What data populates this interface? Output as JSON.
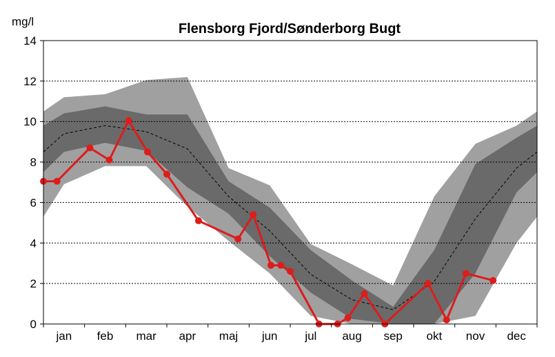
{
  "chart_data": {
    "type": "area",
    "title": "Flensborg Fjord/Sønderborg Bugt",
    "ylabel": "mg/l",
    "xlabel": "",
    "ylim": [
      0,
      14
    ],
    "yticks": [
      0,
      2,
      4,
      6,
      8,
      10,
      12,
      14
    ],
    "grid": true,
    "categories": [
      "jan",
      "feb",
      "mar",
      "apr",
      "maj",
      "jun",
      "jul",
      "aug",
      "sep",
      "okt",
      "nov",
      "dec"
    ],
    "x_range": [
      0,
      12
    ],
    "band_x": [
      0,
      0.5,
      1.5,
      2.5,
      3.5,
      4.5,
      5.5,
      6.5,
      7.5,
      8.5,
      9.5,
      10.5,
      11.5,
      12
    ],
    "outer_band": {
      "upper": [
        10.5,
        11.2,
        11.35,
        12.05,
        12.2,
        7.7,
        6.85,
        3.95,
        2.95,
        1.9,
        6.3,
        8.9,
        9.8,
        10.5
      ],
      "lower": [
        5.3,
        6.9,
        7.8,
        7.8,
        5.8,
        4.1,
        2.5,
        0.4,
        0.0,
        0.0,
        0.0,
        0.4,
        4.0,
        5.3
      ]
    },
    "inner_band": {
      "upper": [
        9.8,
        10.4,
        10.75,
        10.35,
        10.35,
        7.05,
        5.75,
        3.65,
        2.15,
        0.85,
        3.65,
        7.9,
        9.2,
        9.8
      ],
      "lower": [
        7.5,
        8.5,
        8.95,
        8.55,
        6.75,
        5.45,
        3.35,
        1.55,
        0.25,
        0.0,
        0.0,
        2.5,
        6.5,
        7.5
      ]
    },
    "median": {
      "y": [
        8.5,
        9.4,
        9.8,
        9.5,
        8.65,
        6.3,
        4.6,
        2.45,
        1.2,
        0.7,
        2.1,
        5.2,
        7.7,
        8.5
      ]
    },
    "series": [
      {
        "x": [
          0,
          0.33,
          1.13,
          1.6,
          2.07,
          2.53,
          3.0,
          3.77,
          4.73,
          5.1,
          5.53,
          5.77,
          6.0,
          6.7,
          7.15,
          7.4,
          7.8,
          8.3,
          9.35,
          9.8,
          10.27,
          10.93
        ],
        "y": [
          7.05,
          7.05,
          8.7,
          8.1,
          10.05,
          8.5,
          7.4,
          5.1,
          4.2,
          5.4,
          2.9,
          2.9,
          2.6,
          0.0,
          0.0,
          0.3,
          1.5,
          0.0,
          2.0,
          0.2,
          2.5,
          2.15
        ],
        "color": "#dd1c1c"
      }
    ],
    "colors": {
      "outer_band": "#a0a0a0",
      "inner_band": "#6a6a6a",
      "median_line": "#000000",
      "grid": "#000000"
    }
  }
}
